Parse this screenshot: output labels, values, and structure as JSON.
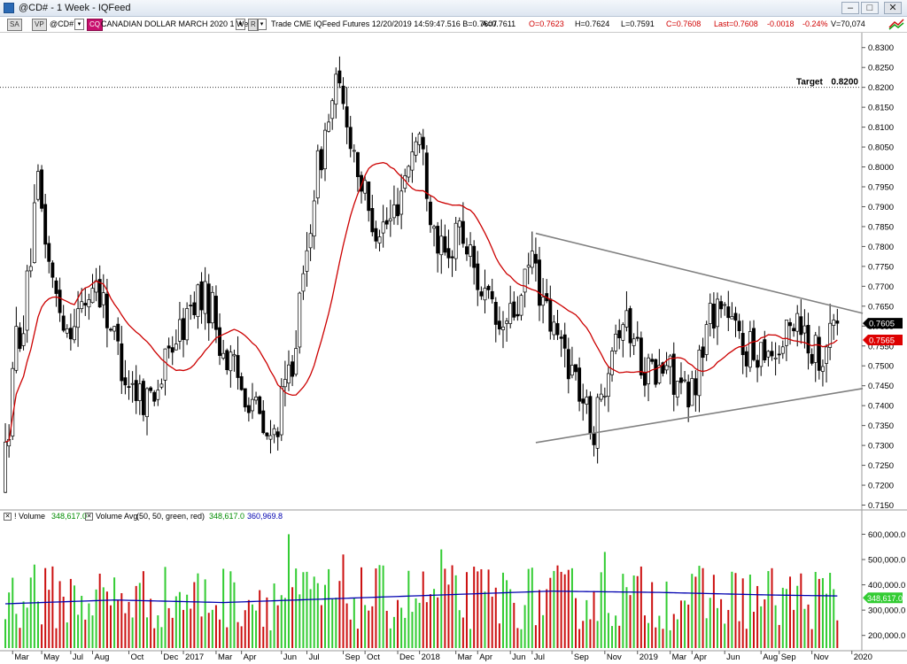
{
  "window": {
    "title": "@CD# - 1 Week - IQFeed",
    "min": "–",
    "max": "□",
    "close": "✕"
  },
  "toolbar": {
    "tag_sa": "SA",
    "tag_vp": "VP",
    "symbol": "@CD#",
    "tag_cq": "CQ",
    "description": "CANADIAN DOLLAR MARCH 2020  1 Week",
    "r_label": "R",
    "info": "Trade  CME  IQFeed  Futures  12/20/2019  14:59:47.516  B=0.7607",
    "ask": "A=0.7611",
    "open": "O=0.7623",
    "high": "H=0.7624",
    "low": "L=0.7591",
    "close": "C=0.7608",
    "last": "Last=0.7608",
    "change": "-0.0018",
    "pct": "-0.24%",
    "vol": "V=70,074"
  },
  "colors": {
    "up": "#ffffff",
    "down": "#000000",
    "ma": "#cc0000",
    "trend": "#808080",
    "vol_up": "#33cc33",
    "vol_down": "#cc1111",
    "vol_avg": "#0000b0"
  },
  "chart_data": [
    {
      "type": "candlestick",
      "title": "",
      "ylim": [
        0.714,
        0.8335
      ],
      "y_ticks": [
        "0.8300",
        "0.8250",
        "0.8200",
        "0.8150",
        "0.8100",
        "0.8050",
        "0.8000",
        "0.7950",
        "0.7900",
        "0.7850",
        "0.7800",
        "0.7750",
        "0.7700",
        "0.7650",
        "0.7600",
        "0.7550",
        "0.7500",
        "0.7450",
        "0.7400",
        "0.7350",
        "0.7300",
        "0.7250",
        "0.7200",
        "0.7150"
      ],
      "x_labels": [
        "Mar",
        "May",
        "Jul",
        "Aug",
        "Oct",
        "Dec",
        "2017",
        "Mar",
        "Apr",
        "Jun",
        "Jul",
        "Sep",
        "Oct",
        "Dec",
        "2018",
        "Mar",
        "Apr",
        "Jun",
        "Jul",
        "Sep",
        "Nov",
        "2019",
        "Mar",
        "Apr",
        "Jun",
        "Aug",
        "Sep",
        "Nov",
        "2020"
      ],
      "x_label_week_index": [
        2,
        10,
        18,
        24,
        34,
        43,
        49,
        58,
        65,
        76,
        83,
        93,
        99,
        108,
        114,
        124,
        130,
        139,
        145,
        156,
        165,
        174,
        183,
        189,
        198,
        208,
        213,
        222,
        233
      ],
      "target": {
        "label": "Target",
        "value_label": "0.8200",
        "value": 0.82
      },
      "last_label": "0.7605",
      "ma_label": "0.7565",
      "trendlines": [
        {
          "from": [
            146,
            0.7833
          ],
          "to": [
            236,
            0.7632
          ]
        },
        {
          "from": [
            146,
            0.7307
          ],
          "to": [
            236,
            0.7443
          ]
        }
      ],
      "anchors": [
        [
          0,
          0.719
        ],
        [
          2,
          0.736
        ],
        [
          4,
          0.757
        ],
        [
          6,
          0.761
        ],
        [
          10,
          0.795
        ],
        [
          14,
          0.77
        ],
        [
          18,
          0.76
        ],
        [
          22,
          0.764
        ],
        [
          26,
          0.772
        ],
        [
          30,
          0.76
        ],
        [
          34,
          0.748
        ],
        [
          37,
          0.744
        ],
        [
          40,
          0.742
        ],
        [
          44,
          0.747
        ],
        [
          47,
          0.756
        ],
        [
          50,
          0.76
        ],
        [
          54,
          0.768
        ],
        [
          58,
          0.765
        ],
        [
          60,
          0.756
        ],
        [
          63,
          0.75
        ],
        [
          66,
          0.745
        ],
        [
          69,
          0.742
        ],
        [
          72,
          0.733
        ],
        [
          74,
          0.73
        ],
        [
          77,
          0.74
        ],
        [
          80,
          0.752
        ],
        [
          83,
          0.77
        ],
        [
          86,
          0.795
        ],
        [
          89,
          0.808
        ],
        [
          92,
          0.82
        ],
        [
          95,
          0.812
        ],
        [
          98,
          0.8
        ],
        [
          101,
          0.788
        ],
        [
          104,
          0.785
        ],
        [
          107,
          0.786
        ],
        [
          110,
          0.795
        ],
        [
          113,
          0.805
        ],
        [
          115,
          0.808
        ],
        [
          118,
          0.79
        ],
        [
          121,
          0.778
        ],
        [
          123,
          0.775
        ],
        [
          125,
          0.786
        ],
        [
          128,
          0.78
        ],
        [
          131,
          0.772
        ],
        [
          134,
          0.765
        ],
        [
          137,
          0.758
        ],
        [
          140,
          0.762
        ],
        [
          143,
          0.766
        ],
        [
          146,
          0.778
        ],
        [
          149,
          0.765
        ],
        [
          152,
          0.758
        ],
        [
          155,
          0.754
        ],
        [
          158,
          0.747
        ],
        [
          161,
          0.738
        ],
        [
          163,
          0.734
        ],
        [
          165,
          0.742
        ],
        [
          168,
          0.758
        ],
        [
          171,
          0.762
        ],
        [
          174,
          0.757
        ],
        [
          177,
          0.75
        ],
        [
          180,
          0.747
        ],
        [
          183,
          0.75
        ],
        [
          186,
          0.746
        ],
        [
          189,
          0.74
        ],
        [
          192,
          0.751
        ],
        [
          195,
          0.763
        ],
        [
          198,
          0.767
        ],
        [
          201,
          0.76
        ],
        [
          204,
          0.755
        ],
        [
          207,
          0.753
        ],
        [
          210,
          0.756
        ],
        [
          213,
          0.753
        ],
        [
          216,
          0.757
        ],
        [
          219,
          0.764
        ],
        [
          222,
          0.756
        ],
        [
          225,
          0.753
        ],
        [
          228,
          0.758
        ],
        [
          229,
          0.7607
        ]
      ]
    },
    {
      "type": "bar",
      "title": "Volume",
      "ylim": [
        150000,
        640000
      ],
      "y_ticks": [
        "600,000.0",
        "500,000.0",
        "400,000.0",
        "300,000.0",
        "200,000.0"
      ],
      "y_tick_values": [
        600000,
        500000,
        400000,
        300000,
        200000
      ],
      "last_label": "348,617.0",
      "legend": {
        "volume": "! Volume",
        "volume_value": "348,617.0",
        "avg": "Volume Avg",
        "avg_params": "(50, 50, green, red)",
        "avg_value": "348,617.0",
        "avg_value2": "360,969.8"
      },
      "volume_range": [
        220000,
        480000
      ],
      "highlights": [
        [
          8,
          480000
        ],
        [
          78,
          600000
        ],
        [
          93,
          520000
        ],
        [
          120,
          540000
        ],
        [
          165,
          530000
        ],
        [
          232,
          480000
        ],
        [
          233,
          460000
        ]
      ],
      "avg_anchors": [
        [
          0,
          325000
        ],
        [
          30,
          340000
        ],
        [
          60,
          330000
        ],
        [
          90,
          345000
        ],
        [
          120,
          360000
        ],
        [
          150,
          375000
        ],
        [
          180,
          370000
        ],
        [
          210,
          360000
        ],
        [
          234,
          355000
        ]
      ]
    }
  ]
}
